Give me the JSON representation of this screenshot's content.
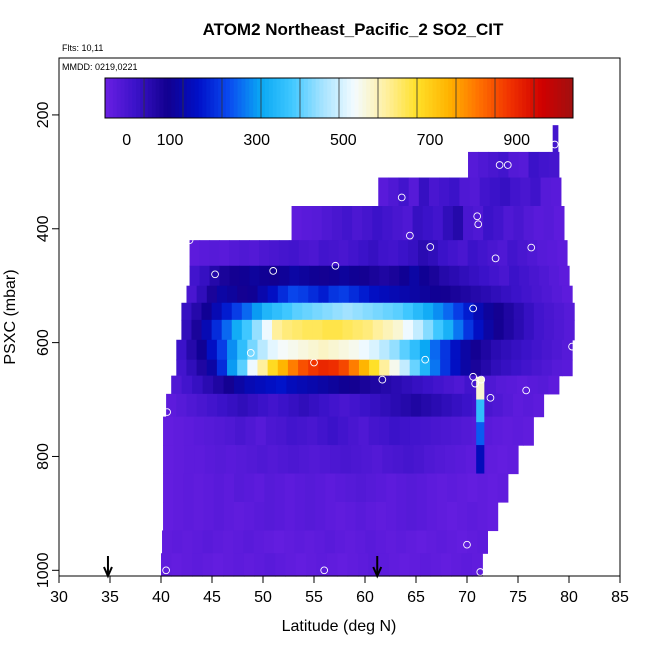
{
  "chart_data": {
    "type": "heatmap",
    "title": "ATOM2 Northeast_Pacific_2 SO2_CIT",
    "flights_label": "Flts: 10,11",
    "mmdd_label": "MMDD: 0219,0221",
    "xlabel": "Latitude (deg N)",
    "ylabel": "PSXC (mbar)",
    "xlim": [
      30,
      85
    ],
    "ylim": [
      1010,
      100
    ],
    "x_ticks": [
      "30",
      "35",
      "40",
      "45",
      "50",
      "55",
      "60",
      "65",
      "70",
      "75",
      "80",
      "85"
    ],
    "y_ticks": [
      "200",
      "400",
      "600",
      "800",
      "1000"
    ],
    "colorbar": {
      "range": [
        -50,
        1030
      ],
      "tick_values": [
        0,
        100,
        300,
        500,
        700,
        900
      ],
      "tick_labels": [
        "0",
        "100",
        "300",
        "500",
        "700",
        "900"
      ],
      "colors": [
        "#6a1fe3",
        "#3a12c8",
        "#12008f",
        "#0010c8",
        "#0a4cf0",
        "#0aa8f4",
        "#40c8ff",
        "#a8e4ff",
        "#f4fbff",
        "#fff0a0",
        "#ffe028",
        "#ffb400",
        "#ff7000",
        "#f03000",
        "#d00000",
        "#a01010"
      ]
    },
    "arrows_lat": [
      34.8,
      61.2
    ],
    "flight_points": [
      {
        "lat": 40.5,
        "p": 1000
      },
      {
        "lat": 40.6,
        "p": 722
      },
      {
        "lat": 42.8,
        "p": 420
      },
      {
        "lat": 45.3,
        "p": 480
      },
      {
        "lat": 48.8,
        "p": 618
      },
      {
        "lat": 51.0,
        "p": 474
      },
      {
        "lat": 55.0,
        "p": 635
      },
      {
        "lat": 56.0,
        "p": 1000
      },
      {
        "lat": 57.1,
        "p": 465
      },
      {
        "lat": 61.7,
        "p": 665
      },
      {
        "lat": 63.6,
        "p": 345
      },
      {
        "lat": 64.4,
        "p": 412
      },
      {
        "lat": 65.9,
        "p": 630
      },
      {
        "lat": 66.4,
        "p": 432
      },
      {
        "lat": 70.0,
        "p": 955
      },
      {
        "lat": 70.6,
        "p": 540
      },
      {
        "lat": 70.6,
        "p": 660
      },
      {
        "lat": 70.8,
        "p": 672
      },
      {
        "lat": 71.0,
        "p": 378
      },
      {
        "lat": 71.1,
        "p": 392
      },
      {
        "lat": 71.4,
        "p": 665
      },
      {
        "lat": 71.3,
        "p": 1003
      },
      {
        "lat": 72.3,
        "p": 697
      },
      {
        "lat": 72.8,
        "p": 452
      },
      {
        "lat": 73.2,
        "p": 288
      },
      {
        "lat": 74.0,
        "p": 288
      },
      {
        "lat": 75.8,
        "p": 684
      },
      {
        "lat": 76.3,
        "p": 433
      },
      {
        "lat": 78.6,
        "p": 252
      },
      {
        "lat": 80.3,
        "p": 607
      }
    ],
    "layers": [
      {
        "p_top": 218,
        "p_bot": 265,
        "lat_min": 78.4,
        "lat_max": 78.9,
        "values": [
          8
        ]
      },
      {
        "p_top": 265,
        "p_bot": 310,
        "lat_min": 70.1,
        "lat_max": 79.0,
        "values": [
          -20,
          -10,
          0,
          10,
          -15,
          -20,
          20,
          10,
          5
        ]
      },
      {
        "p_top": 310,
        "p_bot": 360,
        "lat_min": 61.3,
        "lat_max": 79.2,
        "values": [
          -25,
          -10,
          10,
          -20,
          30,
          0,
          10,
          20,
          -10,
          -15,
          10,
          20,
          30,
          10,
          0,
          15,
          -20,
          -25
        ]
      },
      {
        "p_top": 360,
        "p_bot": 420,
        "lat_min": 52.8,
        "lat_max": 79.5,
        "values": [
          -30,
          -25,
          -20,
          -10,
          0,
          10,
          -5,
          5,
          20,
          10,
          0,
          -10,
          30,
          20,
          10,
          40,
          60,
          0,
          -10,
          20,
          10,
          -10,
          0,
          -15,
          -25,
          -20,
          -30
        ]
      },
      {
        "p_top": 420,
        "p_bot": 465,
        "lat_min": 42.8,
        "lat_max": 79.8,
        "values": [
          -30,
          -25,
          -20,
          -25,
          -15,
          -10,
          -15,
          -5,
          0,
          5,
          10,
          0,
          -5,
          10,
          5,
          0,
          10,
          20,
          30,
          15,
          10,
          20,
          30,
          50,
          40,
          20,
          10,
          0,
          20,
          10,
          0,
          -10,
          10,
          0,
          -10,
          -20,
          -25,
          -30
        ]
      },
      {
        "p_top": 465,
        "p_bot": 500,
        "lat_min": 42.8,
        "lat_max": 80.0,
        "values": [
          10,
          30,
          60,
          80,
          90,
          100,
          110,
          100,
          95,
          105,
          120,
          110,
          100,
          90,
          100,
          110,
          100,
          90,
          80,
          70,
          80,
          100,
          120,
          100,
          80,
          60,
          50,
          40,
          30,
          20,
          10,
          0,
          20,
          10,
          0,
          -10,
          -20,
          -30
        ]
      },
      {
        "p_top": 500,
        "p_bot": 530,
        "lat_min": 42.5,
        "lat_max": 80.3,
        "values": [
          0,
          40,
          80,
          120,
          110,
          90,
          100,
          130,
          160,
          200,
          230,
          220,
          200,
          180,
          210,
          220,
          200,
          180,
          160,
          150,
          140,
          130,
          120,
          110,
          100,
          90,
          80,
          70,
          60,
          50,
          40,
          30,
          20,
          10,
          0,
          -10,
          -20,
          -30
        ]
      },
      {
        "p_top": 530,
        "p_bot": 560,
        "lat_min": 42.0,
        "lat_max": 80.5,
        "values": [
          30,
          60,
          100,
          140,
          180,
          220,
          260,
          300,
          340,
          360,
          380,
          400,
          410,
          420,
          430,
          440,
          450,
          440,
          430,
          420,
          410,
          400,
          380,
          350,
          320,
          290,
          260,
          220,
          180,
          140,
          110,
          90,
          70,
          50,
          30,
          10,
          0,
          -10,
          -20
        ]
      },
      {
        "p_top": 560,
        "p_bot": 595,
        "lat_min": 42.0,
        "lat_max": 80.5,
        "values": [
          40,
          80,
          140,
          200,
          260,
          320,
          380,
          440,
          520,
          600,
          620,
          630,
          640,
          640,
          650,
          650,
          640,
          630,
          620,
          600,
          580,
          560,
          520,
          480,
          430,
          380,
          330,
          270,
          210,
          160,
          120,
          90,
          70,
          50,
          30,
          10,
          0,
          -10,
          -20
        ]
      },
      {
        "p_top": 595,
        "p_bot": 630,
        "lat_min": 41.5,
        "lat_max": 80.3,
        "values": [
          20,
          60,
          100,
          160,
          220,
          290,
          360,
          420,
          470,
          510,
          530,
          540,
          550,
          560,
          570,
          560,
          550,
          540,
          520,
          500,
          470,
          440,
          400,
          360,
          310,
          260,
          210,
          160,
          120,
          90,
          70,
          50,
          40,
          30,
          20,
          10,
          0,
          -10,
          -20
        ]
      },
      {
        "p_top": 630,
        "p_bot": 658,
        "lat_min": 41.5,
        "lat_max": 80.3,
        "values": [
          10,
          40,
          70,
          120,
          200,
          300,
          400,
          520,
          600,
          680,
          740,
          800,
          850,
          880,
          900,
          890,
          860,
          800,
          740,
          670,
          600,
          540,
          480,
          410,
          340,
          270,
          210,
          160,
          120,
          80,
          60,
          40,
          30,
          20,
          10,
          0,
          -10,
          -20,
          -25
        ]
      },
      {
        "p_top": 658,
        "p_bot": 690,
        "lat_min": 41.0,
        "lat_max": 79.0,
        "values": [
          -10,
          10,
          30,
          50,
          70,
          90,
          120,
          140,
          150,
          160,
          170,
          150,
          140,
          130,
          120,
          110,
          100,
          90,
          80,
          70,
          60,
          50,
          40,
          30,
          20,
          10,
          0,
          -10,
          10,
          0,
          -10,
          -20,
          -25,
          -30,
          -25,
          -20,
          -30
        ]
      },
      {
        "p_top": 690,
        "p_bot": 730,
        "lat_min": 40.5,
        "lat_max": 77.5,
        "values": [
          -30,
          -20,
          -10,
          0,
          10,
          20,
          30,
          40,
          30,
          20,
          10,
          20,
          30,
          40,
          30,
          20,
          10,
          0,
          10,
          20,
          30,
          40,
          50,
          60,
          70,
          60,
          50,
          40,
          30,
          20,
          10,
          0,
          -10,
          -20,
          -30,
          -25,
          -30
        ]
      },
      {
        "p_top": 730,
        "p_bot": 780,
        "lat_min": 40.2,
        "lat_max": 76.5,
        "values": [
          -40,
          -35,
          -30,
          -25,
          -20,
          -15,
          -10,
          0,
          -10,
          -20,
          -5,
          0,
          10,
          5,
          0,
          10,
          20,
          10,
          0,
          -10,
          5,
          10,
          20,
          15,
          10,
          5,
          0,
          -5,
          -10,
          -15,
          -20,
          -25,
          -30,
          -35,
          -30,
          -35
        ]
      },
      {
        "p_top": 780,
        "p_bot": 830,
        "lat_min": 40.2,
        "lat_max": 75.0,
        "values": [
          -40,
          -35,
          -30,
          -30,
          -25,
          -20,
          -25,
          -20,
          -15,
          -10,
          -15,
          -10,
          -5,
          -10,
          -15,
          -10,
          -5,
          0,
          -5,
          -10,
          -15,
          -5,
          0,
          5,
          0,
          -10,
          -15,
          -20,
          -25,
          -30,
          -30,
          -35,
          -40,
          -35
        ]
      },
      {
        "p_top": 830,
        "p_bot": 880,
        "lat_min": 40.2,
        "lat_max": 74.0,
        "values": [
          -40,
          -35,
          -30,
          -35,
          -30,
          -25,
          -30,
          -20,
          -25,
          -30,
          -20,
          -25,
          -30,
          -25,
          -20,
          -25,
          -30,
          -25,
          -20,
          -15,
          -20,
          -25,
          -30,
          -25,
          -20,
          -25,
          -30,
          -35,
          -30,
          -35,
          -40,
          -35,
          -40,
          -35
        ]
      },
      {
        "p_top": 880,
        "p_bot": 930,
        "lat_min": 40.2,
        "lat_max": 73.0,
        "values": [
          -40,
          -35,
          -30,
          -35,
          -30,
          -25,
          -30,
          -35,
          -30,
          -25,
          -20,
          -25,
          -30,
          -25,
          -20,
          -25,
          -30,
          -35,
          -30,
          -25,
          -30,
          -35,
          -30,
          -25,
          -20,
          -25,
          -30,
          -35,
          -40,
          -35,
          -30,
          -35,
          -40
        ]
      },
      {
        "p_top": 930,
        "p_bot": 970,
        "lat_min": 40.1,
        "lat_max": 72.0,
        "values": [
          -35,
          -30,
          -35,
          -30,
          -25,
          -30,
          -35,
          -30,
          -25,
          -30,
          -35,
          -40,
          -35,
          -30,
          -35,
          -30,
          -25,
          -30,
          -35,
          -30,
          -25,
          -30,
          -35,
          -30,
          -35,
          -40,
          -35,
          -30,
          -35,
          -40,
          -35,
          -30
        ]
      },
      {
        "p_top": 970,
        "p_bot": 1010,
        "lat_min": 40.0,
        "lat_max": 71.5,
        "values": [
          -35,
          -40,
          -35,
          -30,
          -35,
          -40,
          -35,
          -30,
          -35,
          -30,
          -25,
          -30,
          -35,
          -40,
          -35,
          -30,
          -35,
          -40,
          -35,
          -30,
          -25,
          -30,
          -35,
          -40,
          -35,
          -30,
          -35,
          -40,
          -35,
          -30,
          -35
        ]
      }
    ],
    "streak": {
      "lat_min": 70.9,
      "lat_max": 71.7,
      "cells": [
        {
          "p_top": 660,
          "p_bot": 700,
          "v": 560
        },
        {
          "p_top": 700,
          "p_bot": 740,
          "v": 360
        },
        {
          "p_top": 740,
          "p_bot": 780,
          "v": 250
        },
        {
          "p_top": 780,
          "p_bot": 830,
          "v": 150
        }
      ]
    }
  }
}
